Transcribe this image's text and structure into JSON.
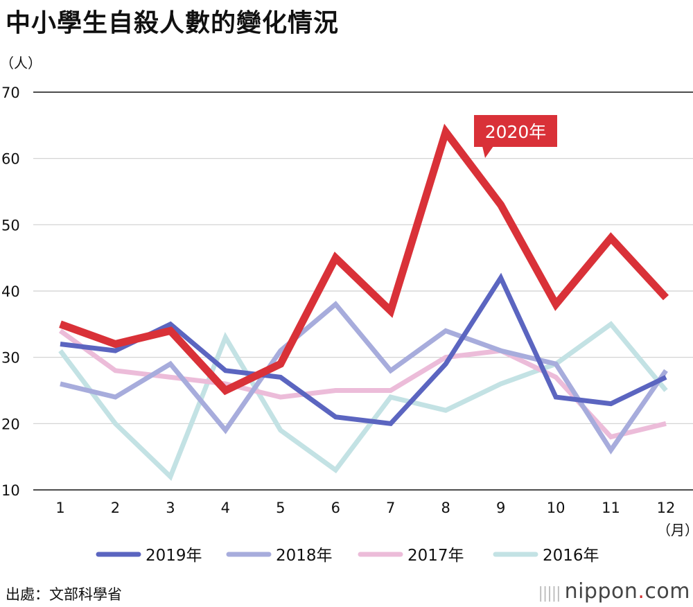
{
  "title": "中小學生自殺人數的變化情況",
  "source": "出處：文部科學省",
  "logo": {
    "text_main": "nippon",
    "text_dot": ".",
    "text_tld": "com",
    "accent_color": "#d32f2f"
  },
  "chart_data": {
    "type": "line",
    "ylabel": "（人）",
    "xlabel": "（月）",
    "x": [
      1,
      2,
      3,
      4,
      5,
      6,
      7,
      8,
      9,
      10,
      11,
      12
    ],
    "ylim": [
      10,
      70
    ],
    "yticks": [
      10,
      20,
      30,
      40,
      50,
      60,
      70
    ],
    "grid": true,
    "legend_position": "bottom",
    "callout": {
      "text": "2020年",
      "series": "2020年",
      "color": "#d93138"
    },
    "series": [
      {
        "name": "2016年",
        "color": "#c3e2e4",
        "width": 7,
        "values": [
          31,
          20,
          12,
          33,
          19,
          13,
          24,
          22,
          26,
          29,
          35,
          25
        ]
      },
      {
        "name": "2017年",
        "color": "#ecbcd9",
        "width": 7,
        "values": [
          34,
          28,
          27,
          26,
          24,
          25,
          25,
          30,
          31,
          27,
          18,
          20
        ]
      },
      {
        "name": "2018年",
        "color": "#a7acdc",
        "width": 7,
        "values": [
          26,
          24,
          29,
          19,
          31,
          38,
          28,
          34,
          31,
          29,
          16,
          28
        ]
      },
      {
        "name": "2019年",
        "color": "#5b65c0",
        "width": 7,
        "values": [
          32,
          31,
          35,
          28,
          27,
          21,
          20,
          29,
          42,
          24,
          23,
          27
        ]
      },
      {
        "name": "2020年",
        "color": "#d93138",
        "width": 11,
        "values": [
          35,
          32,
          34,
          25,
          29,
          45,
          37,
          64,
          53,
          38,
          48,
          39
        ]
      }
    ],
    "legend": [
      "2019年",
      "2018年",
      "2017年",
      "2016年"
    ]
  }
}
